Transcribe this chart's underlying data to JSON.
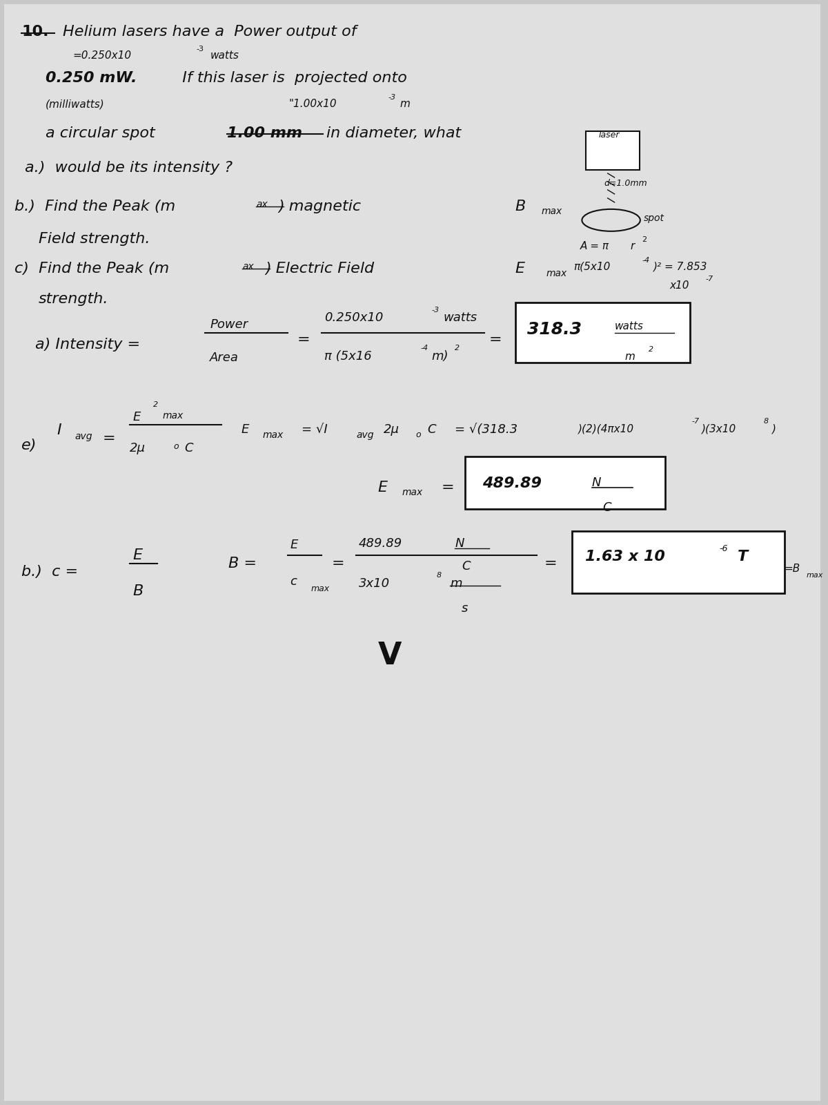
{
  "bg_color": "#c8c8c8",
  "paper_color": "#e0e0e0",
  "ink_color": "#111111",
  "title_num": "10.",
  "title_text": "Helium lasers have a  Power output of",
  "small_exp": "=0.250x10",
  "small_exp_sup": "-3",
  "small_exp_unit": "watts",
  "line3a": "0.250 mW.",
  "line3b": "  If this laser is  projected onto",
  "line4a": "(milliwatts)",
  "line4b": "\"1.00x10",
  "line4b_sup": "-3",
  "line4b_end": "m",
  "line5a": "a circular spot",
  "line5b": "1.00 mm",
  "line5c": "in diameter, what",
  "line6": "a.)  would be its intensity ?",
  "line7a": "b.)  Find the Peak (m",
  "line7b": "ax",
  "line7c": ") magnetic",
  "line7d": "B",
  "line7e": "max",
  "line8": "Field strength.",
  "line9a": "c)  Find the Peak (m",
  "line9b": "ax",
  "line9c": ") Electric Field",
  "line9d": "E",
  "line9e": "max",
  "line10": "strength.",
  "note1a": "A = ",
  "note1b": "r",
  "note1c": "2",
  "note2a": "(5x10",
  "note2b": "-4",
  "note2c": ")² = 7.853",
  "note3": "x10",
  "note3b": "-7",
  "sol_a_label": "a) Intensity =",
  "sol_a_top": "Power",
  "sol_a_bot": "Area",
  "sol_a_eq": "=",
  "sol_a_num1": "0.250x10",
  "sol_a_num1_sup": "-3",
  "sol_a_num1_unit": "watts",
  "sol_a_den1": "π (5x16",
  "sol_a_den1_sup": "-4",
  "sol_a_den1_end": "m)",
  "sol_a_den1_sup2": "2",
  "sol_a_eq2": "=",
  "sol_a_ans": "318.3",
  "sol_a_unit_top": "watts",
  "sol_a_unit_bot": "m",
  "sol_a_unit_bot_sup": "2",
  "sol_e_label": "e)",
  "sol_e_I": "I",
  "sol_e_avg": "avg",
  "sol_e_eq": "=",
  "sol_e_top": "E",
  "sol_e_top_sup": "2",
  "sol_e_top2": "max",
  "sol_e_bot": "2",
  "sol_e_bot2": "o",
  "sol_e_bot3": "C",
  "sol_e_formula1": "E",
  "sol_e_formula2": "max",
  "sol_e_formula3": "= ",
  "sol_e_formula4": "I",
  "sol_e_formula5": "avg",
  "sol_e_formula6": " 2",
  "sol_e_formula7": "o",
  "sol_e_formula8": "C",
  "sol_e_formula9": "= ",
  "sol_e_formula10": "(318.3",
  "sol_e_formula11": ")(2)(4",
  "sol_e_formula12": "x10",
  "sol_e_formula13": "-7",
  "sol_e_formula14": ")(3x10",
  "sol_e_formula15": "8",
  "sol_e_formula16": ")",
  "sol_e_res1": "E",
  "sol_e_res2": "max",
  "sol_e_res3": "=",
  "sol_e_ans": "489.89",
  "sol_e_ans_unit_top": "N",
  "sol_e_ans_unit_bot": "C",
  "sol_b_label": "b.)  c =",
  "sol_b_top": "E",
  "sol_b_bot": "B",
  "sol_b_Beq": "B =",
  "sol_b_Etop": "E",
  "sol_b_Ebot": "c",
  "sol_b_Ebot2": "max",
  "sol_b_eq2": "=",
  "sol_b_num": "489.89",
  "sol_b_num_unit_top": "N",
  "sol_b_num_unit_bot": "C",
  "sol_b_den": "3x10",
  "sol_b_den_sup": "8",
  "sol_b_den_unit_top": "m",
  "sol_b_den_unit_bot": "s",
  "sol_b_eq3": "=",
  "sol_b_ans": "1.63 x 10",
  "sol_b_ans_sup": "-6",
  "sol_b_ans_unit": "T",
  "sol_b_suffix1": "=B",
  "sol_b_suffix2": "max",
  "checkmark": "V"
}
